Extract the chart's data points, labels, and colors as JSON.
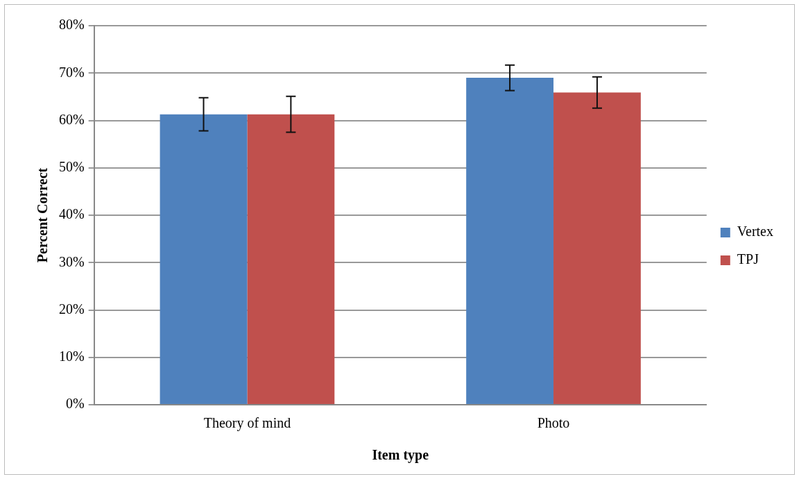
{
  "chart_data": {
    "type": "bar",
    "xlabel": "Item type",
    "ylabel": "Percent Correct",
    "categories": [
      "Theory of mind",
      "Photo"
    ],
    "series": [
      {
        "name": "Vertex",
        "color": "#4f81bd",
        "values": [
          61.3,
          69.0
        ],
        "errors": [
          3.5,
          2.7
        ]
      },
      {
        "name": "TPJ",
        "color": "#c0504d",
        "values": [
          61.3,
          65.9
        ],
        "errors": [
          3.8,
          3.3
        ]
      }
    ],
    "ylim": [
      0,
      80
    ],
    "yticks": [
      {
        "value": 0,
        "label": "0%"
      },
      {
        "value": 10,
        "label": "10%"
      },
      {
        "value": 20,
        "label": "20%"
      },
      {
        "value": 30,
        "label": "30%"
      },
      {
        "value": 40,
        "label": "40%"
      },
      {
        "value": 50,
        "label": "50%"
      },
      {
        "value": 60,
        "label": "60%"
      },
      {
        "value": 70,
        "label": "70%"
      },
      {
        "value": 80,
        "label": "80%"
      }
    ],
    "grid": "y",
    "legend": "right"
  }
}
